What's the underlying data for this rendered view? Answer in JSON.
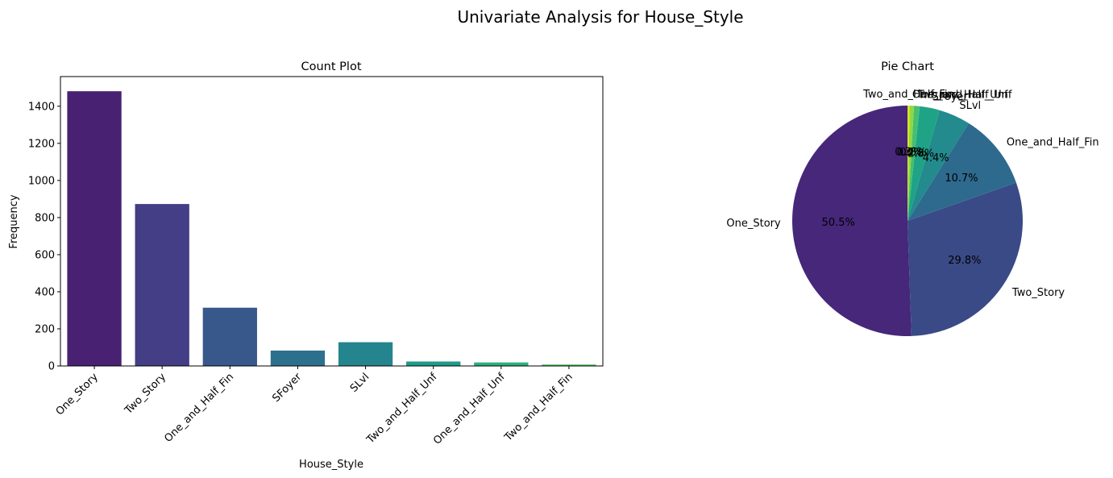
{
  "figure": {
    "suptitle": "Univariate Analysis for House_Style"
  },
  "chart_data": [
    {
      "type": "bar",
      "title": "Count Plot",
      "xlabel": "House_Style",
      "ylabel": "Frequency",
      "categories": [
        "One_Story",
        "Two_Story",
        "One_and_Half_Fin",
        "SFoyer",
        "SLvl",
        "Two_and_Half_Unf",
        "One_and_Half_Unf",
        "Two_and_Half_Fin"
      ],
      "values": [
        1481,
        873,
        314,
        83,
        128,
        24,
        19,
        8
      ],
      "ylim": [
        0,
        1560
      ],
      "yticks": [
        0,
        200,
        400,
        600,
        800,
        1000,
        1200,
        1400
      ],
      "colors": [
        "#482173",
        "#433e85",
        "#38588c",
        "#2d708e",
        "#25858e",
        "#1e9b8a",
        "#2ab07f",
        "#52c569"
      ],
      "grid": false
    },
    {
      "type": "pie",
      "title": "Pie Chart",
      "labels": [
        "One_Story",
        "Two_Story",
        "One_and_Half_Fin",
        "SLvl",
        "SFoyer",
        "Two_and_Half_Unf",
        "One_and_Half_Unf",
        "Two_and_Half_Fin"
      ],
      "values": [
        50.5,
        29.8,
        10.7,
        4.4,
        2.8,
        0.8,
        0.6,
        0.3
      ],
      "pct_labels": [
        "50.5%",
        "29.8%",
        "10.7%",
        "4.4%",
        "2.8%",
        "0.8%",
        "0.6%",
        "0.3%"
      ],
      "colors": [
        "#46277a",
        "#3a4a86",
        "#2e6a8e",
        "#238a8d",
        "#1fa386",
        "#45bf70",
        "#8fd744",
        "#dde318"
      ],
      "start_angle_deg": 90,
      "direction": "counterclockwise"
    }
  ]
}
